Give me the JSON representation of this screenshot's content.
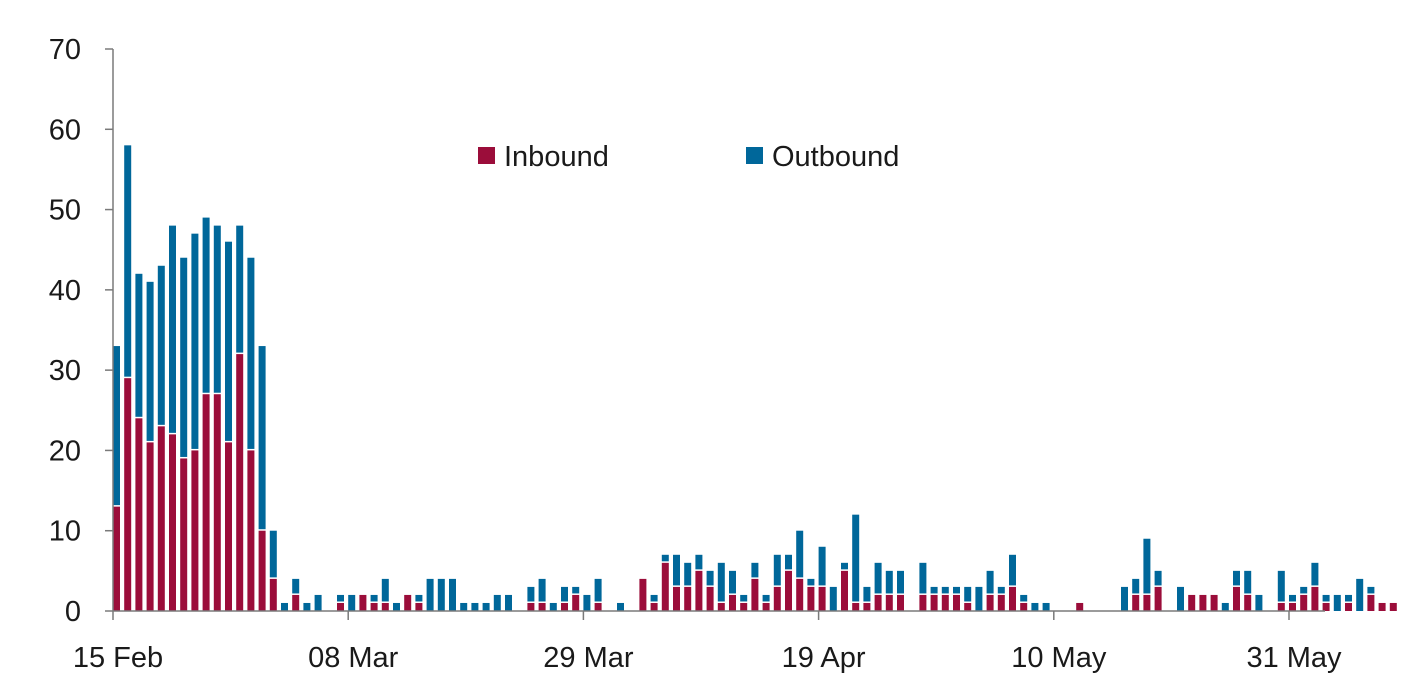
{
  "chart_data": {
    "type": "bar",
    "stacked": true,
    "title": "",
    "xlabel": "",
    "ylabel": "",
    "ylim": [
      0,
      70
    ],
    "yticks": [
      0,
      10,
      20,
      30,
      40,
      50,
      60,
      70
    ],
    "xtick_labels": [
      "15 Feb",
      "08 Mar",
      "29 Mar",
      "19 Apr",
      "10 May",
      "31 May"
    ],
    "grid": false,
    "legend_position": "top-center",
    "x_start_date": "15 Feb",
    "series": [
      {
        "name": "Inbound",
        "color": "#9b0d3a",
        "values": [
          13,
          29,
          24,
          21,
          23,
          22,
          19,
          20,
          27,
          27,
          21,
          32,
          20,
          10,
          4,
          0,
          2,
          0,
          0,
          0,
          1,
          0,
          2,
          1,
          1,
          0,
          2,
          1,
          0,
          0,
          0,
          0,
          0,
          0,
          0,
          0,
          0,
          1,
          1,
          0,
          1,
          2,
          0,
          1,
          0,
          0,
          0,
          4,
          1,
          6,
          3,
          3,
          5,
          3,
          1,
          2,
          1,
          4,
          1,
          3,
          5,
          4,
          3,
          3,
          0,
          5,
          1,
          1,
          2,
          2,
          2,
          0,
          2,
          2,
          2,
          2,
          1,
          0,
          2,
          2,
          3,
          1,
          0,
          0,
          0,
          0,
          1,
          0,
          0,
          0,
          0,
          2,
          2,
          3,
          0,
          0,
          2,
          2,
          2,
          0,
          3,
          2,
          0,
          0,
          1,
          1,
          2,
          3,
          1,
          0,
          1,
          0,
          2,
          1,
          1
        ]
      },
      {
        "name": "Outbound",
        "color": "#00679a",
        "values": [
          20,
          29,
          18,
          20,
          20,
          26,
          25,
          27,
          22,
          21,
          25,
          16,
          24,
          23,
          6,
          1,
          2,
          1,
          2,
          0,
          1,
          2,
          0,
          1,
          3,
          1,
          0,
          1,
          4,
          4,
          4,
          1,
          1,
          1,
          2,
          2,
          0,
          2,
          3,
          1,
          2,
          1,
          2,
          3,
          0,
          1,
          0,
          0,
          1,
          1,
          4,
          3,
          2,
          2,
          5,
          3,
          1,
          2,
          1,
          4,
          2,
          6,
          1,
          5,
          3,
          1,
          11,
          2,
          4,
          3,
          3,
          0,
          4,
          1,
          1,
          1,
          2,
          3,
          3,
          1,
          4,
          1,
          1,
          1,
          0,
          0,
          0,
          0,
          0,
          0,
          3,
          2,
          7,
          2,
          0,
          3,
          0,
          0,
          0,
          1,
          2,
          3,
          2,
          0,
          4,
          1,
          1,
          3,
          1,
          2,
          1,
          4,
          1,
          0,
          0
        ]
      }
    ]
  }
}
